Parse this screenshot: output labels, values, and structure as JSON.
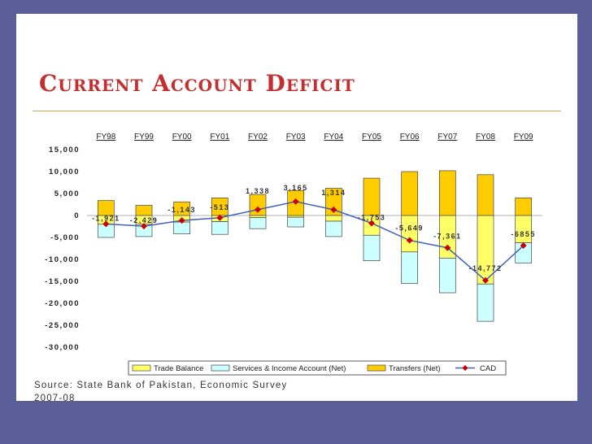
{
  "slide": {
    "title": "Current Account Deficit",
    "source": "Source: State Bank of Pakistan, Economic Survey 2007-08"
  },
  "chart_data": {
    "type": "bar",
    "categories": [
      "FY98",
      "FY99",
      "FY00",
      "FY01",
      "FY02",
      "FY03",
      "FY04",
      "FY05",
      "FY06",
      "FY07",
      "FY08",
      "FY09"
    ],
    "ylim": [
      -30000,
      15000
    ],
    "yticks": [
      15000,
      10000,
      5000,
      0,
      -5000,
      -10000,
      -15000,
      -20000,
      -25000,
      -30000
    ],
    "ytick_labels": [
      "15,000",
      "10,000",
      "5,000",
      "0",
      "-5,000",
      "-10,000",
      "-15,000",
      "-20,000",
      "-25,000",
      "-30,000"
    ],
    "series": [
      {
        "name": "Trade Balance",
        "color": "#ffff66",
        "values": [
          -2000,
          -2000,
          -1500,
          -1400,
          -500,
          -400,
          -1300,
          -4500,
          -8300,
          -9700,
          -15600,
          -6200
        ]
      },
      {
        "name": "Services & Income Account (Net)",
        "color": "#ccffff",
        "values": [
          -3000,
          -2800,
          -2700,
          -2900,
          -2500,
          -2200,
          -3500,
          -5800,
          -7200,
          -7900,
          -8500,
          -4600
        ]
      },
      {
        "name": "Transfers (Net)",
        "color": "#ffcc00",
        "values": [
          3400,
          2300,
          3100,
          4000,
          4800,
          5700,
          6200,
          8500,
          10000,
          10200,
          9300,
          4000
        ]
      },
      {
        "name": "CAD",
        "color": "#cc0000",
        "values": [
          -1921,
          -2429,
          -1143,
          -513,
          1338,
          3165,
          1314,
          -1753,
          -5649,
          -7361,
          -14772,
          -6855
        ]
      }
    ],
    "data_labels": [
      "-1,921",
      "-2,429",
      "-1,143",
      "-513",
      "1,338",
      "3,165",
      "1,314",
      "-1,753",
      "-5,649",
      "-7,361",
      "-14,772",
      "-6855"
    ],
    "legend_position": "bottom",
    "grid": false
  }
}
